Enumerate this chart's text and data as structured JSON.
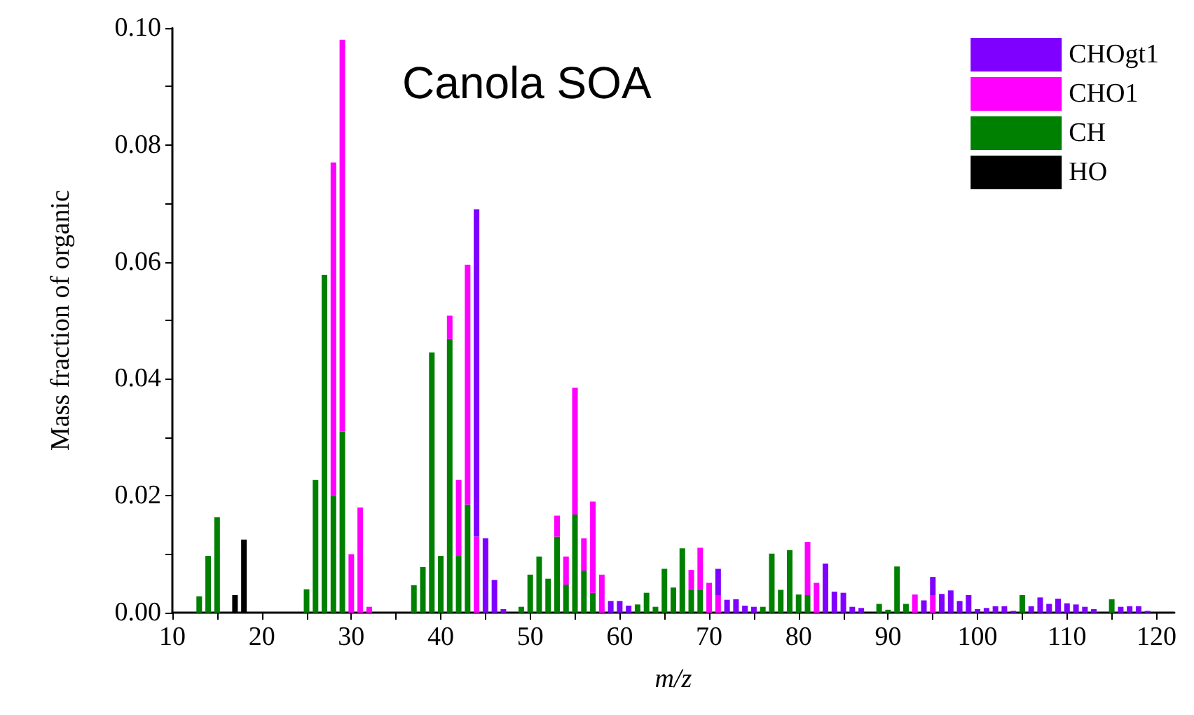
{
  "chart_data": {
    "type": "bar",
    "stacked": true,
    "title": "Canola SOA",
    "xlabel": "m/z",
    "ylabel": "Mass fraction of organic",
    "x": [
      13,
      14,
      15,
      17,
      18,
      25,
      26,
      27,
      28,
      29,
      30,
      31,
      32,
      37,
      38,
      39,
      40,
      41,
      42,
      43,
      44,
      45,
      46,
      47,
      49,
      50,
      51,
      52,
      53,
      54,
      55,
      56,
      57,
      58,
      59,
      60,
      61,
      62,
      63,
      64,
      65,
      66,
      67,
      68,
      69,
      70,
      71,
      72,
      73,
      74,
      75,
      76,
      77,
      78,
      79,
      80,
      81,
      82,
      83,
      84,
      85,
      86,
      87,
      89,
      90,
      91,
      92,
      93,
      94,
      95,
      96,
      97,
      98,
      99,
      100,
      101,
      102,
      103,
      104,
      105,
      106,
      107,
      108,
      109,
      110,
      111,
      112,
      113,
      115,
      116,
      117,
      118,
      119
    ],
    "series": [
      {
        "name": "HO",
        "color": "#000000",
        "values": [
          null,
          null,
          null,
          0.003,
          0.0125,
          null,
          null,
          null,
          null,
          null,
          null,
          null,
          null,
          null,
          null,
          null,
          null,
          null,
          null,
          null,
          null,
          null,
          null,
          null,
          null,
          null,
          null,
          null,
          null,
          null,
          null,
          null,
          null,
          null,
          null,
          null,
          null,
          null,
          null,
          null,
          null,
          null,
          null,
          null,
          null,
          null,
          null,
          null,
          null,
          null,
          null,
          null,
          null,
          null,
          null,
          null,
          null,
          null,
          null,
          null,
          null,
          null,
          null,
          null,
          null,
          null,
          null,
          null,
          null,
          null,
          null,
          null,
          null,
          null,
          null,
          null,
          null,
          null,
          null,
          null,
          null,
          null,
          null,
          null,
          null,
          null,
          null,
          null,
          null,
          null,
          null,
          null,
          null
        ]
      },
      {
        "name": "CH",
        "color": "#008000",
        "values": [
          0.0028,
          0.0097,
          0.0163,
          null,
          null,
          0.004,
          0.0227,
          0.0578,
          0.02,
          0.031,
          null,
          null,
          null,
          0.0047,
          0.0078,
          0.0445,
          0.0097,
          0.0468,
          0.0097,
          0.0185,
          null,
          null,
          null,
          null,
          0.001,
          0.0065,
          0.0096,
          0.0058,
          0.013,
          0.0048,
          0.0168,
          0.0072,
          0.0034,
          null,
          null,
          null,
          null,
          0.0014,
          0.0034,
          0.001,
          0.0075,
          0.0043,
          0.011,
          0.004,
          0.004,
          null,
          null,
          null,
          null,
          null,
          null,
          0.001,
          0.0101,
          0.0039,
          0.0107,
          0.0031,
          0.003,
          null,
          null,
          null,
          null,
          null,
          null,
          0.0015,
          0.0005,
          0.0079,
          0.0015,
          null,
          null,
          null,
          null,
          null,
          null,
          null,
          null,
          null,
          null,
          null,
          null,
          0.003,
          null,
          null,
          null,
          null,
          null,
          null,
          null,
          null,
          0.0023,
          null,
          null,
          null,
          null
        ]
      },
      {
        "name": "CHO1",
        "color": "#ff00ff",
        "values": [
          null,
          null,
          null,
          null,
          null,
          null,
          null,
          null,
          0.057,
          0.067,
          0.01,
          0.018,
          0.001,
          null,
          null,
          null,
          null,
          0.004,
          0.013,
          0.041,
          0.013,
          null,
          null,
          null,
          null,
          null,
          null,
          null,
          0.0036,
          0.0048,
          0.0217,
          0.0055,
          0.0156,
          0.0065,
          null,
          null,
          null,
          null,
          null,
          null,
          null,
          null,
          null,
          0.0033,
          0.0071,
          0.0051,
          0.003,
          null,
          null,
          null,
          null,
          null,
          null,
          null,
          null,
          null,
          0.0091,
          0.0051,
          null,
          null,
          null,
          null,
          null,
          null,
          null,
          null,
          null,
          0.0031,
          null,
          0.003,
          null,
          null,
          null,
          null,
          null,
          null,
          null,
          null,
          null,
          null,
          null,
          null,
          null,
          null,
          null,
          null,
          null,
          null,
          null,
          null,
          null,
          null,
          null
        ]
      },
      {
        "name": "CHOgt1",
        "color": "#7f00ff",
        "values": [
          null,
          null,
          null,
          null,
          null,
          null,
          null,
          null,
          null,
          null,
          null,
          null,
          null,
          null,
          null,
          null,
          null,
          null,
          null,
          null,
          0.056,
          0.0127,
          0.0056,
          0.0006,
          null,
          null,
          null,
          null,
          null,
          null,
          null,
          null,
          null,
          null,
          0.002,
          0.002,
          0.0012,
          null,
          null,
          null,
          null,
          null,
          null,
          null,
          null,
          null,
          0.0045,
          0.0022,
          0.0023,
          0.0012,
          0.001,
          null,
          null,
          null,
          null,
          null,
          null,
          null,
          0.0084,
          0.0036,
          0.0034,
          0.001,
          0.0008,
          null,
          null,
          null,
          null,
          null,
          0.0021,
          0.0031,
          0.0032,
          0.0038,
          0.002,
          0.003,
          0.0006,
          0.0008,
          0.0011,
          0.0011,
          0.0003,
          null,
          0.0011,
          0.0026,
          0.0015,
          0.0024,
          0.0016,
          0.0014,
          0.001,
          0.0006,
          null,
          0.001,
          0.0011,
          0.0011,
          0.0003
        ]
      }
    ],
    "xlim": [
      10,
      122
    ],
    "xticks": [
      10,
      {
        "value": 15,
        "label": null
      },
      20,
      {
        "value": 25,
        "label": null
      },
      30,
      {
        "value": 35,
        "label": null
      },
      40,
      {
        "value": 45,
        "label": null
      },
      50,
      {
        "value": 55,
        "label": null
      },
      60,
      {
        "value": 65,
        "label": null
      },
      70,
      {
        "value": 75,
        "label": null
      },
      80,
      {
        "value": 85,
        "label": null
      },
      90,
      {
        "value": 95,
        "label": null
      },
      100,
      {
        "value": 105,
        "label": null
      },
      110,
      {
        "value": 115,
        "label": null
      },
      120
    ],
    "ylim": [
      0,
      0.1
    ],
    "yticks": [
      {
        "value": 0,
        "label": "0.00"
      },
      {
        "value": 0.01,
        "label": null
      },
      {
        "value": 0.02,
        "label": "0.02"
      },
      {
        "value": 0.03,
        "label": null
      },
      {
        "value": 0.04,
        "label": "0.04"
      },
      {
        "value": 0.05,
        "label": null
      },
      {
        "value": 0.06,
        "label": "0.06"
      },
      {
        "value": 0.07,
        "label": null
      },
      {
        "value": 0.08,
        "label": "0.08"
      },
      {
        "value": 0.09,
        "label": null
      },
      {
        "value": 0.1,
        "label": "0.10"
      }
    ],
    "grid": false,
    "legend": "top right"
  }
}
